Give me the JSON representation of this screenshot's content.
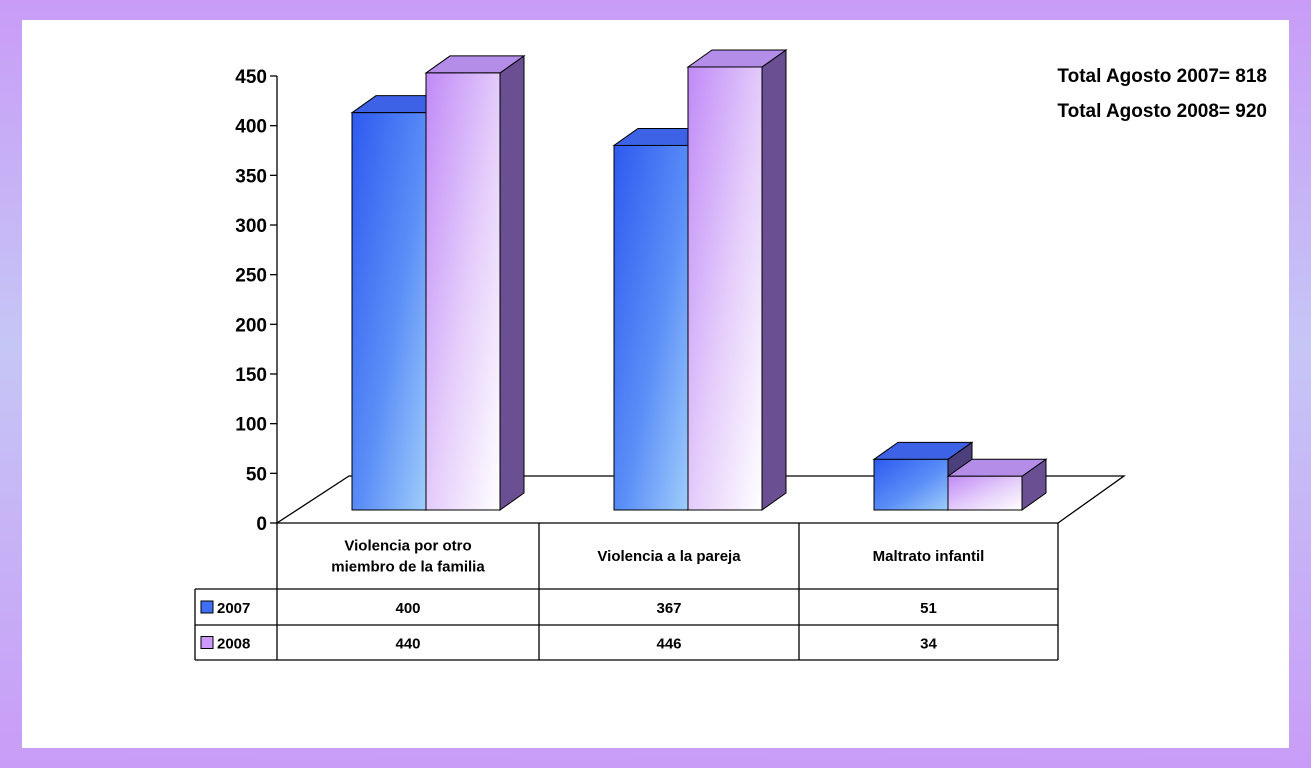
{
  "totals": {
    "line1": "Total Agosto 2007= 818",
    "line2": "Total Agosto 2008= 920"
  },
  "chart_data": {
    "type": "bar",
    "categories": [
      [
        "Violencia por otro",
        "miembro de la familia"
      ],
      [
        "Violencia a la pareja"
      ],
      [
        "Maltrato infantil"
      ]
    ],
    "series": [
      {
        "name": "2007",
        "values": [
          400,
          367,
          51
        ],
        "color": "#3f6ff5"
      },
      {
        "name": "2008",
        "values": [
          440,
          446,
          34
        ],
        "color": "#cc99ff"
      }
    ],
    "ylim": [
      0,
      450
    ],
    "yticks": [
      0,
      50,
      100,
      150,
      200,
      250,
      300,
      350,
      400,
      450
    ],
    "legend": "data-table",
    "grid": false
  }
}
